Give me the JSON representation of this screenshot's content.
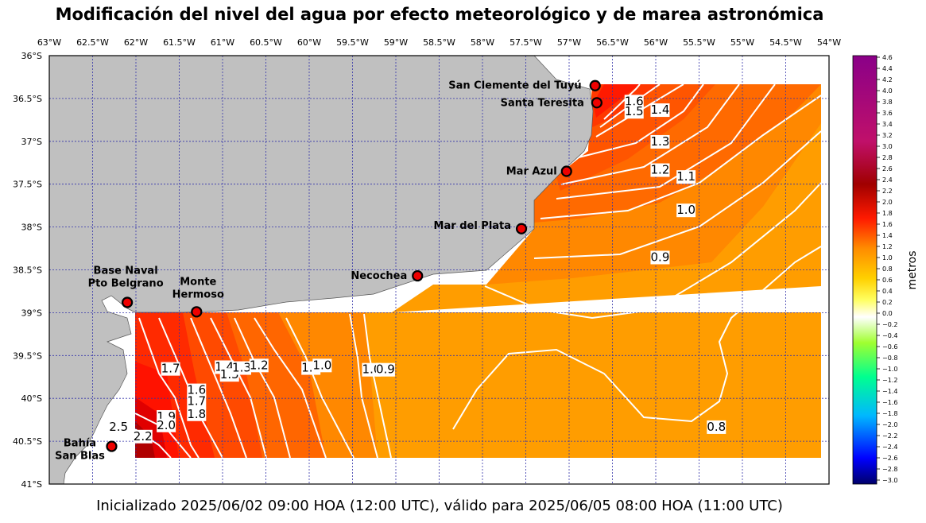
{
  "title": "Modificación del nivel del agua por efecto meteorológico y de marea astronómica",
  "footer": "Inicializado 2025/06/02 09:00 HOA (12:00 UTC), válido para 2025/06/05 08:00 HOA (11:00 UTC)",
  "map": {
    "lon_ticks": [
      "63°W",
      "62.5°W",
      "62°W",
      "61.5°W",
      "61°W",
      "60.5°W",
      "60°W",
      "59.5°W",
      "59°W",
      "58.5°W",
      "58°W",
      "57.5°W",
      "57°W",
      "56.5°W",
      "56°W",
      "55.5°W",
      "55°W",
      "54.5°W",
      "54°W"
    ],
    "lat_ticks": [
      "36°S",
      "36.5°S",
      "37°S",
      "37.5°S",
      "38°S",
      "38.5°S",
      "39°S",
      "39.5°S",
      "40°S",
      "40.5°S",
      "41°S"
    ],
    "lon_range": [
      -63,
      -54
    ],
    "lat_range": [
      -36,
      -41
    ],
    "grid": true,
    "land_color": "#c0c0c0",
    "stations": [
      {
        "name": "San Clemente del Tuyú",
        "lon": -56.7,
        "lat": -36.35
      },
      {
        "name": "Santa Teresita",
        "lon": -56.68,
        "lat": -36.55
      },
      {
        "name": "Mar Azul",
        "lon": -57.03,
        "lat": -37.35
      },
      {
        "name": "Mar del Plata",
        "lon": -57.55,
        "lat": -38.02
      },
      {
        "name": "Necochea",
        "lon": -58.75,
        "lat": -38.57
      },
      {
        "name": "Base Naval Pto Belgrano",
        "lon": -62.1,
        "lat": -38.88
      },
      {
        "name": "Monte Hermoso",
        "lon": -61.3,
        "lat": -38.99
      },
      {
        "name": "Bahía San Blas",
        "lon": -62.28,
        "lat": -40.56
      }
    ],
    "contour_labels": [
      {
        "text": "1.6",
        "lon": -56.25,
        "lat": -36.55
      },
      {
        "text": "1.5",
        "lon": -56.25,
        "lat": -36.67
      },
      {
        "text": "1.4",
        "lon": -55.95,
        "lat": -36.65
      },
      {
        "text": "1.3",
        "lon": -55.95,
        "lat": -37.02
      },
      {
        "text": "1.2",
        "lon": -55.95,
        "lat": -37.35
      },
      {
        "text": "1.1",
        "lon": -55.65,
        "lat": -37.43
      },
      {
        "text": "1.0",
        "lon": -55.65,
        "lat": -37.82
      },
      {
        "text": "0.9",
        "lon": -55.95,
        "lat": -38.37
      },
      {
        "text": "1.7",
        "lon": -61.6,
        "lat": -39.67
      },
      {
        "text": "1.6",
        "lon": -61.3,
        "lat": -39.92
      },
      {
        "text": "1.7",
        "lon": -61.3,
        "lat": -40.05
      },
      {
        "text": "1.8",
        "lon": -61.3,
        "lat": -40.2
      },
      {
        "text": "1.9",
        "lon": -61.65,
        "lat": -40.23
      },
      {
        "text": "2.0",
        "lon": -61.65,
        "lat": -40.33
      },
      {
        "text": "1.4",
        "lon": -60.98,
        "lat": -39.65
      },
      {
        "text": "1.5",
        "lon": -60.92,
        "lat": -39.74
      },
      {
        "text": "1.3",
        "lon": -60.78,
        "lat": -39.66
      },
      {
        "text": "1.2",
        "lon": -60.58,
        "lat": -39.63
      },
      {
        "text": "1.1",
        "lon": -59.98,
        "lat": -39.66
      },
      {
        "text": "1.0",
        "lon": -59.85,
        "lat": -39.63
      },
      {
        "text": "1.0",
        "lon": -59.28,
        "lat": -39.68
      },
      {
        "text": "0.9",
        "lon": -59.12,
        "lat": -39.68
      },
      {
        "text": "0.8",
        "lon": -55.3,
        "lat": -40.35
      },
      {
        "text": "2.5",
        "lon": -62.2,
        "lat": -40.35
      },
      {
        "text": "2.2",
        "lon": -61.92,
        "lat": -40.46
      }
    ]
  },
  "colorbar": {
    "label": "metros",
    "ticks": [
      "4.6",
      "4.4",
      "4.2",
      "4.0",
      "3.8",
      "3.6",
      "3.4",
      "3.2",
      "3.0",
      "2.8",
      "2.6",
      "2.4",
      "2.2",
      "2.0",
      "1.8",
      "1.6",
      "1.4",
      "1.2",
      "1.0",
      "0.8",
      "0.6",
      "0.4",
      "0.2",
      "0.0",
      "−0.2",
      "−0.4",
      "−0.6",
      "−0.8",
      "−1.0",
      "−1.2",
      "−1.4",
      "−1.6",
      "−1.8",
      "−2.0",
      "−2.2",
      "−2.4",
      "−2.6",
      "−2.8",
      "−3.0"
    ],
    "min": -3.0,
    "max": 4.6
  }
}
